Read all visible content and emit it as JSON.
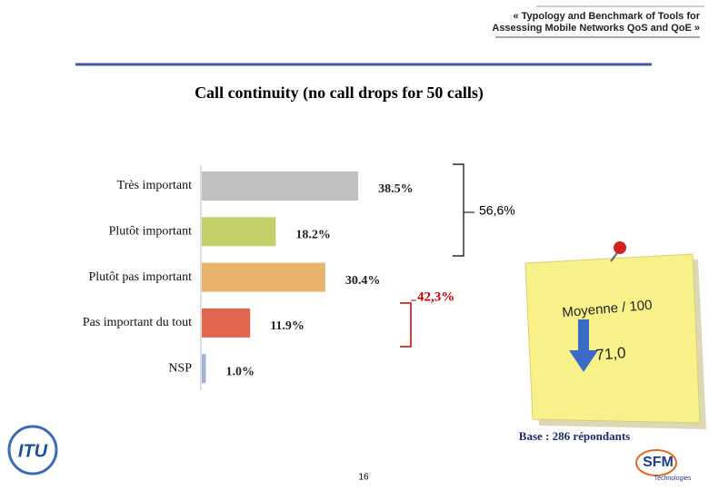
{
  "header": {
    "lines": [
      "« Typology and Benchmark of Tools for",
      "Assessing Mobile Networks QoS and QoE »"
    ]
  },
  "chart_data": {
    "type": "bar",
    "orientation": "horizontal",
    "title": "Call continuity (no call drops for 50 calls)",
    "categories": [
      "Très important",
      "Plutôt important",
      "Plutôt pas important",
      "Pas important du tout",
      "NSP"
    ],
    "values": [
      38.5,
      18.2,
      30.4,
      11.9,
      1.0
    ],
    "value_labels": [
      "38.5%",
      "18.2%",
      "30.4%",
      "11.9%",
      "1.0%"
    ],
    "colors": [
      "#c0c0c0",
      "#c3d069",
      "#e8b46c",
      "#e2664f",
      "#9fb4d8"
    ],
    "annotations": [
      {
        "label": "56,6%",
        "color": "#000000"
      },
      {
        "label": "42,3%",
        "color": "#cc0000"
      }
    ]
  },
  "note": {
    "title": "Moyenne / 100",
    "value": "71,0"
  },
  "footer": {
    "base": "Base : 286 répondants",
    "page": "16"
  },
  "logos": [
    "ITU",
    "SFM",
    "Technologies"
  ]
}
